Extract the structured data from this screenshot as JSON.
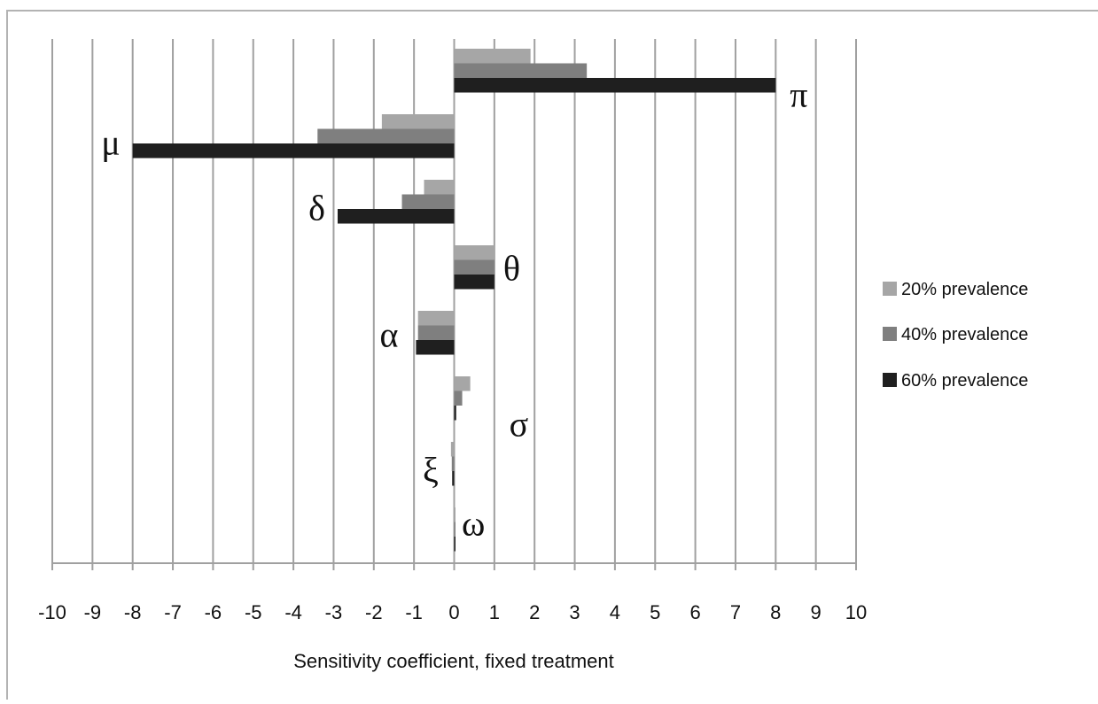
{
  "chart_data": {
    "type": "bar",
    "orientation": "horizontal",
    "title": "",
    "xlabel": "Sensitivity coefficient, fixed treatment",
    "ylabel": "",
    "xlim": [
      -10,
      10
    ],
    "x_ticks": [
      "-10",
      "-9",
      "-8",
      "-7",
      "-6",
      "-5",
      "-4",
      "-3",
      "-2",
      "-1",
      "0",
      "1",
      "2",
      "3",
      "4",
      "5",
      "6",
      "7",
      "8",
      "9",
      "10"
    ],
    "grid": true,
    "legend_position": "right",
    "categories": [
      "π",
      "μ",
      "δ",
      "θ",
      "α",
      "σ",
      "ξ",
      "ω"
    ],
    "series": [
      {
        "name": "20% prevalence",
        "color": "#a6a6a6",
        "values": [
          1.9,
          -1.8,
          -0.75,
          1.0,
          -0.9,
          0.4,
          -0.08,
          0.01
        ]
      },
      {
        "name": "40% prevalence",
        "color": "#7f7f7f",
        "values": [
          3.3,
          -3.4,
          -1.3,
          1.0,
          -0.9,
          0.2,
          -0.06,
          0.01
        ]
      },
      {
        "name": "60% prevalence",
        "color": "#1f1f1f",
        "values": [
          8.0,
          -8.0,
          -2.9,
          1.0,
          -0.95,
          0.05,
          -0.05,
          0.01
        ]
      }
    ]
  }
}
